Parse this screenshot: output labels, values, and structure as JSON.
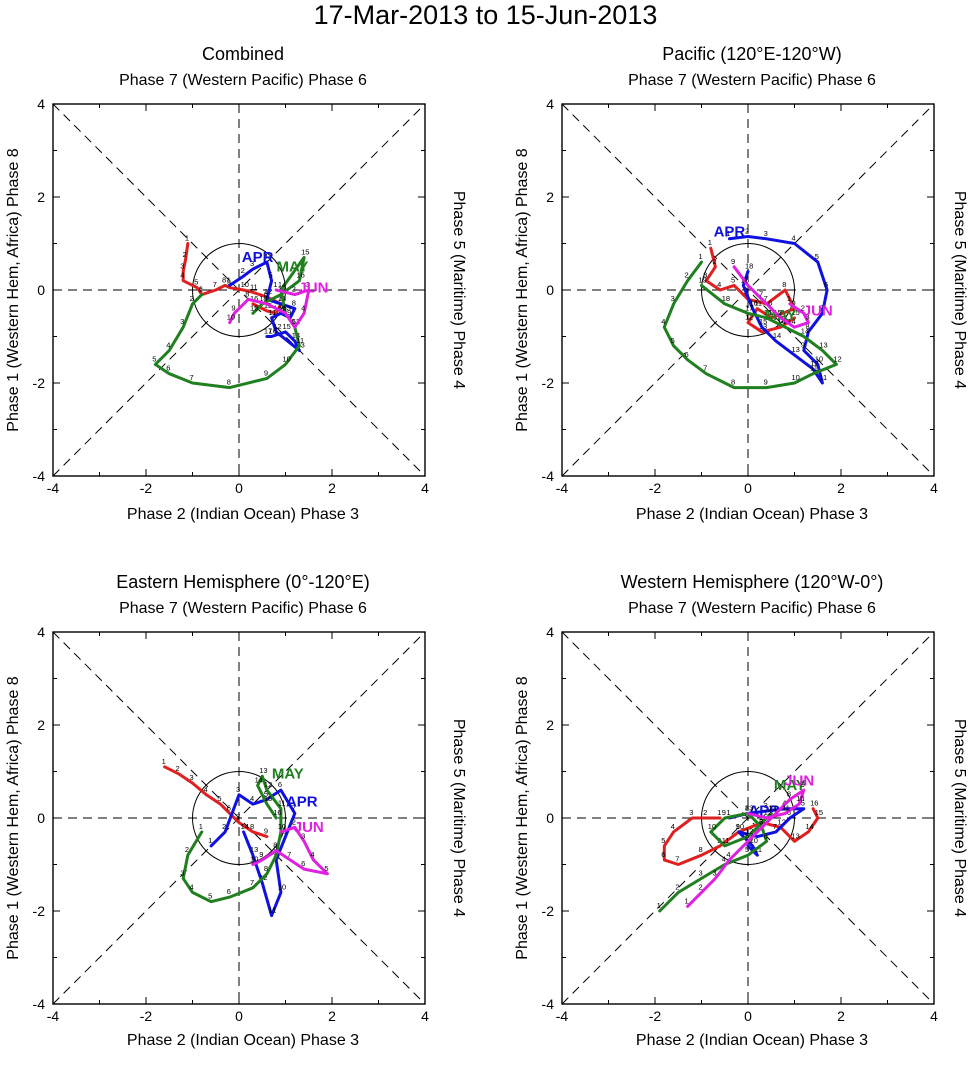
{
  "title": "17-Mar-2013 to 15-Jun-2013",
  "axis": {
    "top": "Phase 7 (Western Pacific) Phase 6",
    "bottom": "Phase 2 (Indian Ocean) Phase 3",
    "left": "Phase 1 (Western Hem, Africa) Phase 8",
    "right": "Phase 5 (Maritime) Phase 4",
    "xticks": [
      "-4",
      "-2",
      "0",
      "2",
      "4"
    ],
    "yticks": [
      "4",
      "2",
      "0",
      "-2",
      "-4"
    ]
  },
  "colors": {
    "MAR": "#e02020",
    "APR": "#1010e0",
    "MAY": "#208020",
    "JUN": "#e020e0",
    "axes": "#000000"
  },
  "chart_data": [
    {
      "type": "line",
      "title": "Combined",
      "xlabel": "Phase 2 (Indian Ocean) Phase 3",
      "ylabel": "Phase 1 (Western Hem, Africa) Phase 8",
      "xlim": [
        -4,
        4
      ],
      "ylim": [
        -4,
        4
      ],
      "reference": {
        "unit_circle_radius": 1,
        "diagonals": true
      },
      "series": [
        {
          "name": "MAR",
          "label_at": null,
          "color": "#e02020",
          "x": [
            -1.1,
            -1.15,
            -1.2,
            -1.2,
            -0.9,
            -0.8,
            -0.5,
            -0.3,
            -0.2,
            0.1,
            0.3,
            0.6,
            0.9,
            0.8,
            0.6,
            0.3
          ],
          "y": [
            1.0,
            0.65,
            0.4,
            0.2,
            0.05,
            -0.1,
            0.0,
            0.1,
            0.05,
            0.0,
            -0.05,
            -0.15,
            -0.3,
            -0.5,
            -0.45,
            -0.3
          ]
        },
        {
          "name": "APR",
          "label_at": [
            0.4,
            0.6
          ],
          "color": "#1010e0",
          "x": [
            -0.2,
            0.1,
            0.3,
            0.6,
            0.7,
            0.6,
            0.9,
            1.2,
            1.1,
            0.9,
            0.7,
            0.8,
            1.3,
            1.2,
            1.0,
            0.7,
            0.6
          ],
          "y": [
            0.1,
            0.3,
            0.45,
            0.6,
            0.2,
            -0.2,
            -0.3,
            -0.4,
            -0.6,
            -0.5,
            -0.6,
            -0.9,
            -1.3,
            -1.1,
            -0.9,
            -1.0,
            -1.0
          ]
        },
        {
          "name": "MAY",
          "label_at": [
            1.15,
            0.4
          ],
          "color": "#208020",
          "x": [
            -0.8,
            -1.0,
            -1.2,
            -1.5,
            -1.8,
            -1.5,
            -1.0,
            -0.2,
            0.6,
            1.0,
            1.3,
            1.2,
            1.0,
            0.9,
            1.4,
            1.3,
            0.9,
            0.5,
            0.3
          ],
          "y": [
            -0.1,
            -0.3,
            -0.8,
            -1.3,
            -1.6,
            -1.8,
            -2.0,
            -2.1,
            -1.9,
            -1.6,
            -1.2,
            -0.8,
            -0.5,
            0.0,
            0.7,
            0.2,
            -0.1,
            -0.3,
            -0.5
          ]
        },
        {
          "name": "JUN",
          "label_at": [
            1.6,
            -0.05
          ],
          "color": "#e020e0",
          "x": [
            0.8,
            1.2,
            1.5,
            1.4,
            1.2,
            1.0,
            0.6,
            0.2,
            -0.1,
            -0.2
          ],
          "y": [
            0.0,
            -0.1,
            0.0,
            -0.5,
            -0.8,
            -0.5,
            -0.3,
            -0.2,
            -0.5,
            -0.7
          ]
        }
      ]
    },
    {
      "type": "line",
      "title": "Pacific (120°E-120°W)",
      "xlabel": "Phase 2 (Indian Ocean) Phase 3",
      "ylabel": "Phase 1 (Western Hem, Africa) Phase 8",
      "xlim": [
        -4,
        4
      ],
      "ylim": [
        -4,
        4
      ],
      "reference": {
        "unit_circle_radius": 1,
        "diagonals": true
      },
      "series": [
        {
          "name": "MAR",
          "label_at": null,
          "color": "#e02020",
          "x": [
            -0.8,
            -0.7,
            -0.9,
            -0.6,
            -0.3,
            0.0,
            0.4,
            0.8,
            1.0,
            0.5,
            0.2,
            0.0,
            0.3,
            0.7,
            1.0
          ],
          "y": [
            0.9,
            0.5,
            0.2,
            0.0,
            0.1,
            -0.2,
            -0.3,
            0.0,
            -0.4,
            -0.6,
            -0.4,
            -0.7,
            -0.9,
            -0.8,
            -0.6
          ]
        },
        {
          "name": "APR",
          "label_at": [
            -0.4,
            1.15
          ],
          "color": "#1010e0",
          "x": [
            -0.4,
            0.0,
            0.4,
            1.0,
            1.5,
            1.7,
            1.6,
            1.3,
            1.2,
            1.5,
            1.6,
            1.4,
            1.0,
            0.6,
            0.3,
            0.1,
            -0.1,
            0.0
          ],
          "y": [
            1.1,
            1.15,
            1.1,
            1.0,
            0.6,
            0.0,
            -0.5,
            -0.9,
            -1.3,
            -1.6,
            -2.0,
            -1.7,
            -1.4,
            -1.1,
            -0.8,
            -0.4,
            0.1,
            0.4
          ]
        },
        {
          "name": "MAY",
          "label_at": [
            0.7,
            -0.65
          ],
          "color": "#208020",
          "x": [
            -1.0,
            -1.3,
            -1.6,
            -1.8,
            -1.6,
            -1.3,
            -0.9,
            -0.3,
            0.4,
            1.0,
            1.4,
            1.9,
            1.6,
            1.2,
            0.8,
            0.4,
            0.0,
            -0.5,
            -1.0
          ],
          "y": [
            0.6,
            0.2,
            -0.3,
            -0.8,
            -1.2,
            -1.5,
            -1.8,
            -2.1,
            -2.1,
            -2.0,
            -1.8,
            -1.6,
            -1.3,
            -1.0,
            -0.8,
            -0.6,
            -0.5,
            -0.3,
            0.1
          ]
        },
        {
          "name": "JUN",
          "label_at": [
            1.5,
            -0.55
          ],
          "color": "#e020e0",
          "x": [
            0.9,
            1.2,
            1.3,
            1.0,
            0.7,
            0.5,
            0.3,
            0.0,
            -0.3
          ],
          "y": [
            -0.3,
            -0.5,
            -0.7,
            -0.8,
            -0.6,
            -0.4,
            -0.2,
            0.1,
            0.5
          ]
        }
      ]
    },
    {
      "type": "line",
      "title": "Eastern Hemisphere (0°-120°E)",
      "xlabel": "Phase 2 (Indian Ocean) Phase 3",
      "ylabel": "Phase 1 (Western Hem, Africa) Phase 8",
      "xlim": [
        -4,
        4
      ],
      "ylim": [
        -4,
        4
      ],
      "reference": {
        "unit_circle_radius": 1,
        "diagonals": true
      },
      "series": [
        {
          "name": "MAR",
          "label_at": null,
          "color": "#e02020",
          "x": [
            -1.6,
            -1.3,
            -1.0,
            -0.7,
            -0.4,
            -0.2,
            0.0,
            0.3,
            0.6
          ],
          "y": [
            1.1,
            0.95,
            0.75,
            0.5,
            0.3,
            0.1,
            -0.1,
            -0.3,
            -0.4
          ]
        },
        {
          "name": "APR",
          "label_at": [
            1.35,
            0.25
          ],
          "color": "#1010e0",
          "x": [
            -0.6,
            -0.3,
            0.0,
            0.3,
            0.6,
            0.9,
            1.2,
            1.0,
            0.8,
            0.9,
            0.7,
            0.5,
            0.3,
            0.1
          ],
          "y": [
            -0.6,
            -0.3,
            0.5,
            0.3,
            0.4,
            0.6,
            0.1,
            -0.4,
            -0.9,
            -1.6,
            -2.1,
            -1.4,
            -0.8,
            -0.3
          ]
        },
        {
          "name": "MAY",
          "label_at": [
            1.05,
            0.85
          ],
          "color": "#208020",
          "x": [
            -0.8,
            -1.1,
            -1.2,
            -1.0,
            -0.6,
            -0.2,
            0.3,
            0.6,
            0.8,
            0.9,
            0.9,
            0.6,
            0.5,
            0.4,
            0.6,
            0.8
          ],
          "y": [
            -0.3,
            -0.8,
            -1.3,
            -1.6,
            -1.8,
            -1.7,
            -1.5,
            -1.2,
            -0.8,
            -0.3,
            0.2,
            0.6,
            0.9,
            0.7,
            0.3,
            0.0
          ]
        },
        {
          "name": "JUN",
          "label_at": [
            1.5,
            -0.3
          ],
          "color": "#e020e0",
          "x": [
            0.9,
            1.2,
            1.4,
            1.6,
            1.9,
            1.4,
            1.1,
            0.8,
            0.5,
            0.3
          ],
          "y": [
            -0.3,
            -0.2,
            -0.5,
            -0.9,
            -1.2,
            -1.1,
            -0.9,
            -0.7,
            -0.9,
            -1.0
          ]
        }
      ]
    },
    {
      "type": "line",
      "title": "Western Hemisphere (120°W-0°)",
      "xlabel": "Phase 2 (Indian Ocean) Phase 3",
      "ylabel": "Phase 1 (Western Hem, Africa) Phase 8",
      "xlim": [
        -4,
        4
      ],
      "ylim": [
        -4,
        4
      ],
      "reference": {
        "unit_circle_radius": 1,
        "diagonals": true
      },
      "series": [
        {
          "name": "MAR",
          "label_at": null,
          "color": "#e02020",
          "x": [
            -0.6,
            -0.9,
            -1.2,
            -1.6,
            -1.8,
            -1.8,
            -1.5,
            -1.0,
            -0.6,
            -0.2,
            0.3,
            0.7,
            1.0,
            1.3,
            1.5,
            1.4
          ],
          "y": [
            0.0,
            0.0,
            0.0,
            -0.3,
            -0.6,
            -0.9,
            -1.0,
            -0.8,
            -0.6,
            -0.3,
            -0.1,
            -0.2,
            -0.5,
            -0.3,
            0.0,
            0.2
          ]
        },
        {
          "name": "APR",
          "label_at": [
            0.35,
            0.05
          ],
          "color": "#1010e0",
          "x": [
            -0.4,
            0.0,
            0.4,
            0.8,
            1.2,
            0.9,
            0.6,
            0.2,
            -0.2,
            0.1,
            0.2,
            0.0
          ],
          "y": [
            0.0,
            0.1,
            0.15,
            0.2,
            0.2,
            0.0,
            -0.3,
            -0.4,
            -0.3,
            -0.6,
            -0.8,
            -0.6
          ]
        },
        {
          "name": "MAY",
          "label_at": [
            0.9,
            0.6
          ],
          "color": "#208020",
          "x": [
            -1.9,
            -1.5,
            -1.0,
            -0.5,
            0.0,
            0.4,
            0.3,
            0.0,
            -0.5,
            -0.8,
            -0.5,
            0.0,
            0.5
          ],
          "y": [
            -2.0,
            -1.6,
            -1.3,
            -1.0,
            -0.8,
            -0.5,
            -0.2,
            0.1,
            0.0,
            -0.3,
            -0.6,
            -0.4,
            0.1
          ]
        },
        {
          "name": "JUN",
          "label_at": [
            1.1,
            0.7
          ],
          "color": "#e020e0",
          "x": [
            -1.3,
            -1.0,
            -0.7,
            -0.4,
            0.0,
            0.3,
            0.6,
            0.9,
            1.2,
            1.1,
            0.8,
            0.4,
            0.0
          ],
          "y": [
            -1.9,
            -1.6,
            -1.3,
            -0.9,
            -0.5,
            -0.2,
            0.1,
            0.4,
            0.6,
            0.3,
            0.1,
            0.0,
            0.1
          ]
        }
      ]
    }
  ]
}
